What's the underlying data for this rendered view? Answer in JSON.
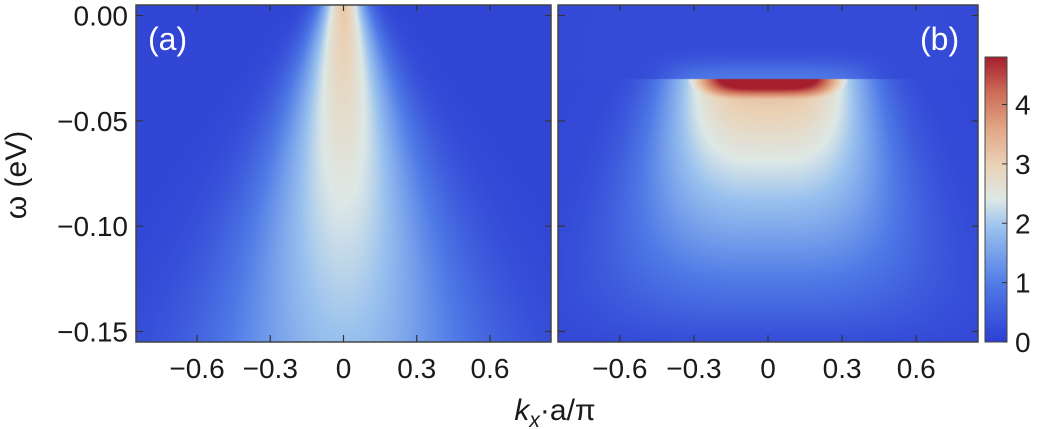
{
  "chart_data": [
    {
      "type": "heatmap",
      "panel_label": "(a)",
      "xlabel_parts": {
        "k": "k",
        "sub": "x",
        "rest": "·a/π"
      },
      "ylabel": "ω (eV)",
      "xlim": [
        -0.85,
        0.85
      ],
      "ylim": [
        -0.155,
        0.005
      ],
      "x_ticks": [
        -0.6,
        -0.3,
        0,
        0.3,
        0.6
      ],
      "x_tick_labels": [
        "−0.6",
        "−0.3",
        "0",
        "0.3",
        "0.6"
      ],
      "y_ticks": [
        0.0,
        -0.05,
        -0.1,
        -0.15
      ],
      "y_tick_labels": [
        "0.00",
        "−0.05",
        "−0.10",
        "−0.15"
      ],
      "features": {
        "band_center_k": 0,
        "peak_intensity": 2.9,
        "peak_omega": 0.0,
        "shape": "V-shaped broad band, intensity decreasing with depth"
      }
    },
    {
      "type": "heatmap",
      "panel_label": "(b)",
      "xlim": [
        -0.85,
        0.85
      ],
      "ylim": [
        -0.155,
        0.005
      ],
      "x_ticks": [
        -0.6,
        -0.3,
        0,
        0.3,
        0.6
      ],
      "x_tick_labels": [
        "−0.6",
        "−0.3",
        "0",
        "0.3",
        "0.6"
      ],
      "y_ticks": [
        0.0,
        -0.05,
        -0.1,
        -0.15
      ],
      "features": {
        "band_center_k": 0,
        "peak_intensity": 4.8,
        "peak_omega": -0.035,
        "cutoff_omega": -0.03,
        "shape": "V-shaped band with sharp intense maximum below cutoff"
      }
    }
  ],
  "colorbar": {
    "range": [
      0,
      4.8
    ],
    "ticks": [
      0,
      1,
      2,
      3,
      4
    ],
    "tick_labels": [
      "0",
      "1",
      "2",
      "3",
      "4"
    ],
    "colors": [
      "#2d3ed3",
      "#4f7ae6",
      "#99c1ee",
      "#dde8e6",
      "#ead2b6",
      "#e2a585",
      "#cc6a56",
      "#a51e2e"
    ]
  }
}
